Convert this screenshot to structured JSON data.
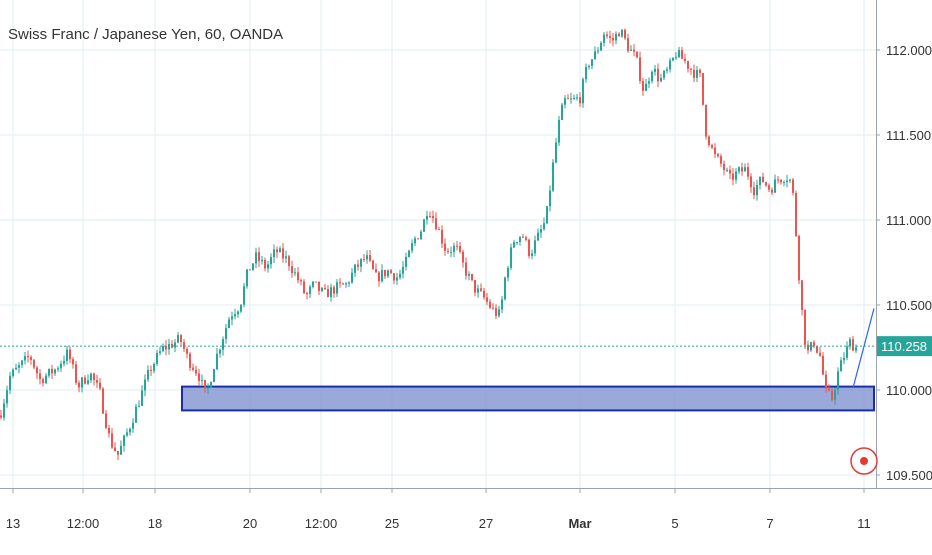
{
  "header": {
    "title": "Swiss Franc / Japanese Yen, 60, OANDA"
  },
  "colors": {
    "up": "#26a69a",
    "down": "#ef5350",
    "zone_fill": "#8f9fd6",
    "zone_border": "#1a2ea8",
    "last_price_bg": "#26a69a",
    "trend_line": "#2962ff",
    "grid": "#e0ecf0",
    "axis_text": "#333333",
    "record_button": "#e53935"
  },
  "icons": {
    "record": "record-icon"
  },
  "chart_data": {
    "type": "candlestick",
    "title": "Swiss Franc / Japanese Yen, 60, OANDA",
    "xlabel": "",
    "ylabel": "",
    "ylim": [
      109.44,
      112.33
    ],
    "y_ticks": [
      "112.000",
      "111.500",
      "111.000",
      "110.500",
      "110.000",
      "109.500"
    ],
    "x_ticks": [
      "13",
      "12:00",
      "18",
      "20",
      "12:00",
      "25",
      "27",
      "Mar",
      "5",
      "7",
      "11"
    ],
    "last_price": 110.258,
    "last_price_label": "110.258",
    "support_zone": {
      "low": 109.88,
      "high": 110.02
    },
    "trend_line": {
      "from": 110.0,
      "to": 110.48
    },
    "price_path": [
      [
        0,
        109.85
      ],
      [
        10,
        110.08
      ],
      [
        20,
        110.14
      ],
      [
        30,
        110.2
      ],
      [
        40,
        110.06
      ],
      [
        55,
        110.12
      ],
      [
        68,
        110.22
      ],
      [
        78,
        110.02
      ],
      [
        90,
        110.1
      ],
      [
        100,
        109.98
      ],
      [
        110,
        109.7
      ],
      [
        118,
        109.62
      ],
      [
        128,
        109.76
      ],
      [
        140,
        109.95
      ],
      [
        150,
        110.12
      ],
      [
        162,
        110.24
      ],
      [
        175,
        110.28
      ],
      [
        180,
        110.3
      ],
      [
        188,
        110.18
      ],
      [
        198,
        110.1
      ],
      [
        206,
        109.96
      ],
      [
        214,
        110.15
      ],
      [
        222,
        110.3
      ],
      [
        230,
        110.44
      ],
      [
        240,
        110.5
      ],
      [
        248,
        110.7
      ],
      [
        256,
        110.78
      ],
      [
        266,
        110.72
      ],
      [
        276,
        110.82
      ],
      [
        288,
        110.76
      ],
      [
        298,
        110.65
      ],
      [
        306,
        110.55
      ],
      [
        314,
        110.62
      ],
      [
        324,
        110.56
      ],
      [
        336,
        110.6
      ],
      [
        346,
        110.62
      ],
      [
        356,
        110.72
      ],
      [
        366,
        110.78
      ],
      [
        376,
        110.66
      ],
      [
        388,
        110.7
      ],
      [
        398,
        110.66
      ],
      [
        406,
        110.75
      ],
      [
        414,
        110.88
      ],
      [
        422,
        110.95
      ],
      [
        428,
        111.08
      ],
      [
        436,
        110.98
      ],
      [
        446,
        110.82
      ],
      [
        456,
        110.84
      ],
      [
        464,
        110.72
      ],
      [
        474,
        110.6
      ],
      [
        484,
        110.54
      ],
      [
        494,
        110.46
      ],
      [
        500,
        110.44
      ],
      [
        506,
        110.7
      ],
      [
        514,
        110.88
      ],
      [
        522,
        110.92
      ],
      [
        530,
        110.8
      ],
      [
        538,
        110.9
      ],
      [
        546,
        111.0
      ],
      [
        552,
        111.28
      ],
      [
        558,
        111.54
      ],
      [
        564,
        111.7
      ],
      [
        572,
        111.7
      ],
      [
        580,
        111.72
      ],
      [
        588,
        111.92
      ],
      [
        596,
        111.98
      ],
      [
        604,
        112.1
      ],
      [
        612,
        112.05
      ],
      [
        620,
        112.12
      ],
      [
        628,
        112.02
      ],
      [
        636,
        111.95
      ],
      [
        644,
        111.75
      ],
      [
        652,
        111.9
      ],
      [
        660,
        111.82
      ],
      [
        668,
        111.88
      ],
      [
        676,
        111.98
      ],
      [
        684,
        111.94
      ],
      [
        692,
        111.88
      ],
      [
        700,
        111.84
      ],
      [
        706,
        111.52
      ],
      [
        714,
        111.38
      ],
      [
        722,
        111.32
      ],
      [
        730,
        111.24
      ],
      [
        738,
        111.28
      ],
      [
        746,
        111.3
      ],
      [
        754,
        111.18
      ],
      [
        762,
        111.24
      ],
      [
        770,
        111.18
      ],
      [
        778,
        111.24
      ],
      [
        786,
        111.26
      ],
      [
        792,
        111.22
      ],
      [
        796,
        110.92
      ],
      [
        800,
        110.6
      ],
      [
        804,
        110.32
      ],
      [
        808,
        110.22
      ],
      [
        814,
        110.28
      ],
      [
        820,
        110.2
      ],
      [
        826,
        109.98
      ],
      [
        832,
        109.95
      ],
      [
        838,
        110.1
      ],
      [
        844,
        110.2
      ],
      [
        850,
        110.28
      ],
      [
        856,
        110.25
      ]
    ]
  }
}
